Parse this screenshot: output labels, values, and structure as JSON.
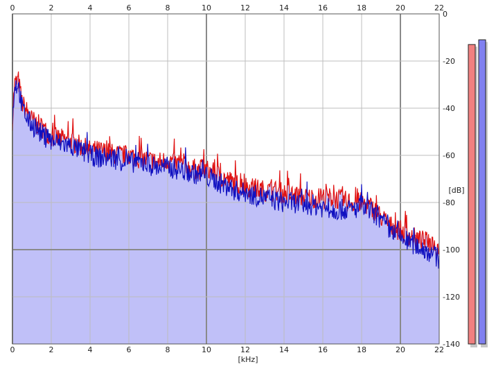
{
  "chart_data": {
    "type": "line",
    "xlabel": "[kHz]",
    "ylabel": "[dB]",
    "xlim": [
      0,
      22
    ],
    "ylim": [
      -140,
      0
    ],
    "x_ticks": [
      "0",
      "2",
      "4",
      "6",
      "8",
      "10",
      "12",
      "14",
      "16",
      "18",
      "20",
      "22"
    ],
    "y_ticks": [
      "0",
      "-20",
      "-40",
      "-60",
      "-80",
      "-100",
      "-120",
      "-140"
    ],
    "grid": true,
    "series": [
      {
        "color": "#e01010",
        "x": [
          0,
          0.1,
          0.3,
          0.5,
          0.8,
          1.0,
          1.5,
          2.0,
          2.5,
          3.0,
          3.5,
          4.0,
          4.5,
          5.0,
          5.5,
          6.0,
          6.5,
          7.0,
          7.5,
          8.0,
          8.5,
          9.0,
          9.5,
          10.0,
          10.5,
          11.0,
          11.5,
          12.0,
          12.5,
          13.0,
          13.5,
          14.0,
          14.5,
          15.0,
          15.5,
          16.0,
          16.5,
          17.0,
          17.5,
          18.0,
          18.5,
          19.0,
          19.5,
          20.0,
          20.5,
          21.0,
          21.5,
          22.0
        ],
        "y": [
          -45,
          -30,
          -28,
          -38,
          -42,
          -45,
          -48,
          -52,
          -53,
          -54,
          -56,
          -58,
          -58,
          -59,
          -60,
          -60,
          -61,
          -62,
          -63,
          -62,
          -64,
          -65,
          -66,
          -66,
          -68,
          -70,
          -72,
          -73,
          -74,
          -75,
          -75,
          -76,
          -77,
          -78,
          -78,
          -78,
          -78,
          -79,
          -80,
          -80,
          -82,
          -86,
          -90,
          -92,
          -94,
          -96,
          -97,
          -99
        ]
      },
      {
        "color": "#1010c0",
        "x": [
          0,
          0.1,
          0.3,
          0.5,
          0.8,
          1.0,
          1.5,
          2.0,
          2.5,
          3.0,
          3.5,
          4.0,
          4.5,
          5.0,
          5.5,
          6.0,
          6.5,
          7.0,
          7.5,
          8.0,
          8.5,
          9.0,
          9.5,
          10.0,
          10.5,
          11.0,
          11.5,
          12.0,
          12.5,
          13.0,
          13.5,
          14.0,
          14.5,
          15.0,
          15.5,
          16.0,
          16.5,
          17.0,
          17.5,
          18.0,
          18.5,
          19.0,
          19.5,
          20.0,
          20.5,
          21.0,
          21.5,
          22.0
        ],
        "y": [
          -47,
          -30,
          -30,
          -40,
          -45,
          -47,
          -51,
          -54,
          -55,
          -56,
          -58,
          -60,
          -61,
          -61,
          -62,
          -63,
          -63,
          -64,
          -65,
          -65,
          -66,
          -67,
          -68,
          -69,
          -71,
          -73,
          -75,
          -76,
          -77,
          -78,
          -79,
          -80,
          -80,
          -81,
          -81,
          -82,
          -83,
          -83,
          -83,
          -82,
          -84,
          -88,
          -92,
          -95,
          -97,
          -99,
          -101,
          -104
        ]
      }
    ],
    "level_meters": [
      {
        "channel_color": "#f08080",
        "level_db": -13
      },
      {
        "channel_color": "#8080f0",
        "level_db": -11
      }
    ]
  }
}
